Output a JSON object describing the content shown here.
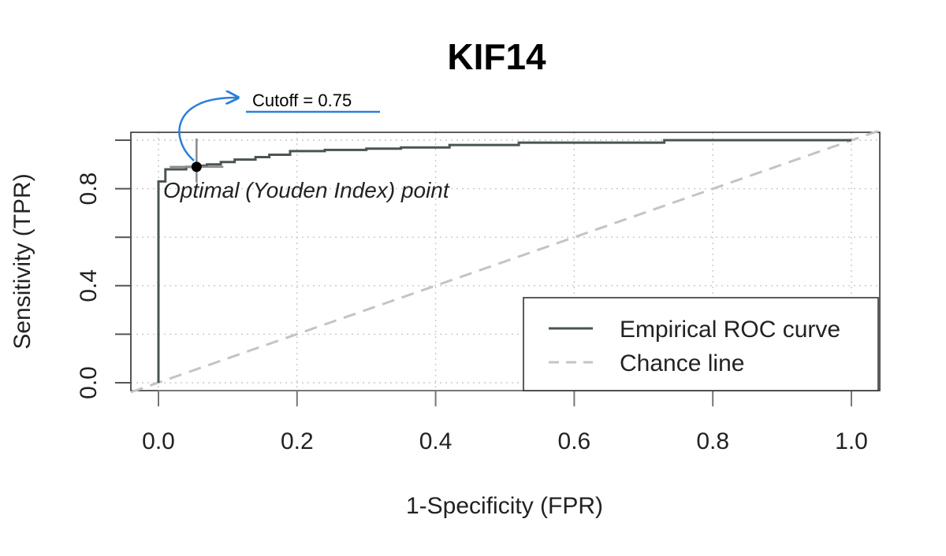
{
  "chart_data": {
    "type": "line",
    "title": "KIF14",
    "xlabel": "1-Specificity (FPR)",
    "ylabel": "Sensitivity (TPR)",
    "xlim": [
      0,
      1
    ],
    "ylim": [
      0,
      1
    ],
    "xticks": [
      "0.0",
      "0.2",
      "0.4",
      "0.6",
      "0.8",
      "1.0"
    ],
    "yticks": [
      "0.0",
      "0.4",
      "0.8"
    ],
    "grid": true,
    "legend_position": "bottom-right",
    "series": [
      {
        "name": "Empirical ROC curve",
        "color": "#4a5553",
        "style": "solid-step",
        "x": [
          0.0,
          0.0,
          0.0,
          0.01,
          0.01,
          0.04,
          0.04,
          0.055,
          0.055,
          0.07,
          0.07,
          0.09,
          0.09,
          0.11,
          0.11,
          0.14,
          0.14,
          0.16,
          0.16,
          0.19,
          0.19,
          0.24,
          0.24,
          0.3,
          0.3,
          0.35,
          0.35,
          0.42,
          0.42,
          0.52,
          0.52,
          0.73,
          0.73,
          1.0
        ],
        "y": [
          0.0,
          0.82,
          0.83,
          0.83,
          0.88,
          0.88,
          0.89,
          0.89,
          0.895,
          0.895,
          0.9,
          0.9,
          0.91,
          0.91,
          0.92,
          0.92,
          0.93,
          0.93,
          0.94,
          0.94,
          0.955,
          0.955,
          0.96,
          0.96,
          0.965,
          0.965,
          0.97,
          0.97,
          0.98,
          0.98,
          0.99,
          0.99,
          1.0,
          1.0
        ]
      },
      {
        "name": "Chance line",
        "color": "#c4c4c4",
        "style": "dashed",
        "x": [
          0.0,
          1.0
        ],
        "y": [
          0.0,
          1.0
        ]
      }
    ],
    "annotations": [
      {
        "text": "Optimal (Youden Index) point",
        "x": 0.055,
        "y": 0.89
      },
      {
        "text": "Cutoff = 0.75"
      }
    ]
  }
}
